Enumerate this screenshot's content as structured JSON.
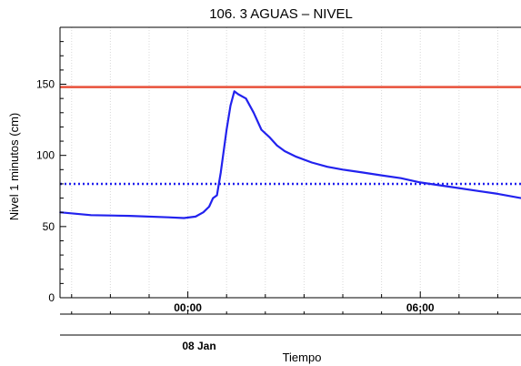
{
  "chart_data": {
    "type": "line",
    "title": "106. 3 AGUAS – NIVEL",
    "xlabel": "Tiempo",
    "ylabel": "Nivel 1 minutos (cm)",
    "date_label": "08 Jan",
    "x_ticks": [
      "00:00",
      "06:00"
    ],
    "y_ticks": [
      0,
      50,
      100,
      150
    ],
    "ylim": [
      0,
      190
    ],
    "xlim_hours": [
      -3.3,
      8.6
    ],
    "grid": "vertical dotted",
    "reference_lines": [
      {
        "value": 148,
        "style": "solid",
        "color": "#e8503a"
      },
      {
        "value": 80,
        "style": "dotted",
        "color": "#2020ee"
      }
    ],
    "series": [
      {
        "color": "#2222ee",
        "x_hours": [
          -3.3,
          -2.5,
          -1.5,
          -0.5,
          -0.1,
          0.2,
          0.4,
          0.55,
          0.65,
          0.75,
          0.85,
          1.0,
          1.1,
          1.2,
          1.3,
          1.5,
          1.7,
          1.9,
          2.1,
          2.3,
          2.5,
          2.8,
          3.2,
          3.6,
          4.0,
          4.5,
          5.0,
          5.5,
          6.0,
          6.5,
          7.0,
          7.5,
          8.0,
          8.6
        ],
        "values": [
          60,
          58,
          57.5,
          56.5,
          56,
          57,
          60,
          64,
          70,
          72,
          88,
          118,
          135,
          145,
          143,
          140,
          130,
          118,
          113,
          107,
          103,
          99,
          95,
          92,
          90,
          88,
          86,
          84,
          81,
          79,
          77,
          75,
          73,
          70
        ]
      }
    ]
  }
}
